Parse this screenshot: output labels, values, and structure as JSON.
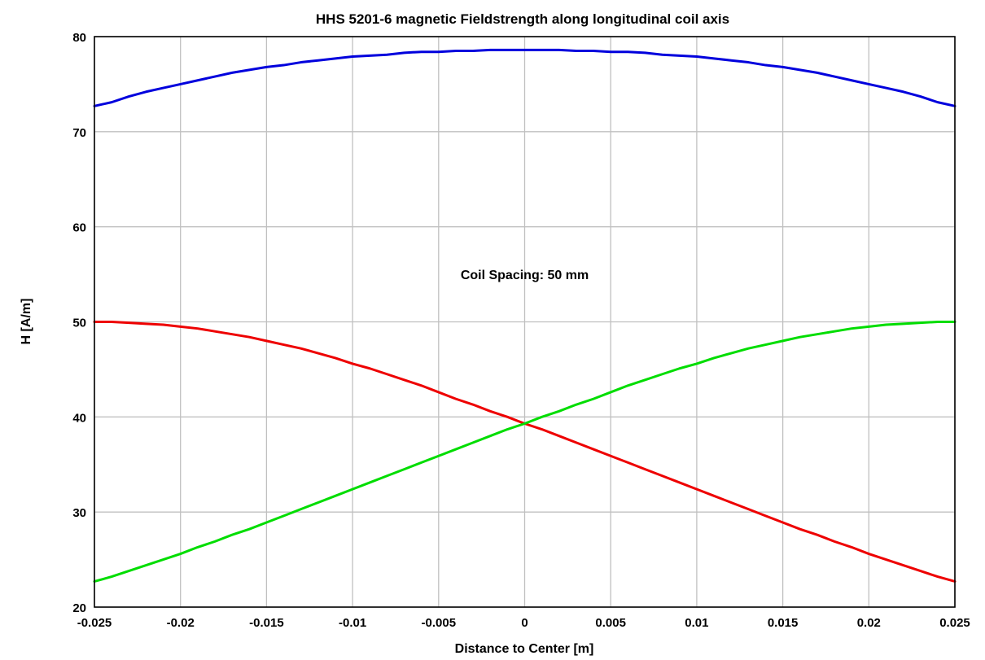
{
  "chart_data": {
    "type": "line",
    "title": "HHS 5201-6 magnetic Fieldstrength along longitudinal coil axis",
    "xlabel": "Distance to Center [m]",
    "ylabel": "H [A/m]",
    "xlim": [
      -0.025,
      0.025
    ],
    "ylim": [
      20,
      80
    ],
    "xticks": [
      -0.025,
      -0.02,
      -0.015,
      -0.01,
      -0.005,
      0,
      0.005,
      0.01,
      0.015,
      0.02,
      0.025
    ],
    "xtick_labels": [
      "-0.025",
      "-0.02",
      "-0.015",
      "-0.01",
      "-0.005",
      "0",
      "0.005",
      "0.01",
      "0.015",
      "0.02",
      "0.025"
    ],
    "yticks": [
      20,
      30,
      40,
      50,
      60,
      70,
      80
    ],
    "ytick_labels": [
      "20",
      "30",
      "40",
      "50",
      "60",
      "70",
      "80"
    ],
    "grid": true,
    "annotation": {
      "text": "Coil Spacing: 50 mm",
      "x": 0,
      "y": 55
    },
    "x": [
      -0.025,
      -0.024,
      -0.023,
      -0.022,
      -0.021,
      -0.02,
      -0.019,
      -0.018,
      -0.017,
      -0.016,
      -0.015,
      -0.014,
      -0.013,
      -0.012,
      -0.011,
      -0.01,
      -0.009,
      -0.008,
      -0.007,
      -0.006,
      -0.005,
      -0.004,
      -0.003,
      -0.002,
      -0.001,
      0,
      0.001,
      0.002,
      0.003,
      0.004,
      0.005,
      0.006,
      0.007,
      0.008,
      0.009,
      0.01,
      0.011,
      0.012,
      0.013,
      0.014,
      0.015,
      0.016,
      0.017,
      0.018,
      0.019,
      0.02,
      0.021,
      0.022,
      0.023,
      0.024,
      0.025
    ],
    "series": [
      {
        "color": "#0000dd",
        "values": [
          72.7,
          73.1,
          73.7,
          74.2,
          74.6,
          75.0,
          75.4,
          75.8,
          76.2,
          76.5,
          76.8,
          77.0,
          77.3,
          77.5,
          77.7,
          77.9,
          78.0,
          78.1,
          78.3,
          78.4,
          78.4,
          78.5,
          78.5,
          78.6,
          78.6,
          78.6,
          78.6,
          78.6,
          78.5,
          78.5,
          78.4,
          78.4,
          78.3,
          78.1,
          78.0,
          77.9,
          77.7,
          77.5,
          77.3,
          77.0,
          76.8,
          76.5,
          76.2,
          75.8,
          75.4,
          75.0,
          74.6,
          74.2,
          73.7,
          73.1,
          72.7
        ]
      },
      {
        "color": "#ee0000",
        "values": [
          50.0,
          50.0,
          49.9,
          49.8,
          49.7,
          49.5,
          49.3,
          49.0,
          48.7,
          48.4,
          48.0,
          47.6,
          47.2,
          46.7,
          46.2,
          45.6,
          45.1,
          44.5,
          43.9,
          43.3,
          42.6,
          41.9,
          41.3,
          40.6,
          40.0,
          39.3,
          38.7,
          38.0,
          37.3,
          36.6,
          35.9,
          35.2,
          34.5,
          33.8,
          33.1,
          32.4,
          31.7,
          31.0,
          30.3,
          29.6,
          28.9,
          28.2,
          27.6,
          26.9,
          26.3,
          25.6,
          25.0,
          24.4,
          23.8,
          23.2,
          22.7
        ]
      },
      {
        "color": "#00dd00",
        "values": [
          22.7,
          23.2,
          23.8,
          24.4,
          25.0,
          25.6,
          26.3,
          26.9,
          27.6,
          28.2,
          28.9,
          29.6,
          30.3,
          31.0,
          31.7,
          32.4,
          33.1,
          33.8,
          34.5,
          35.2,
          35.9,
          36.6,
          37.3,
          38.0,
          38.7,
          39.3,
          40.0,
          40.6,
          41.3,
          41.9,
          42.6,
          43.3,
          43.9,
          44.5,
          45.1,
          45.6,
          46.2,
          46.7,
          47.2,
          47.6,
          48.0,
          48.4,
          48.7,
          49.0,
          49.3,
          49.5,
          49.7,
          49.8,
          49.9,
          50.0,
          50.0
        ]
      }
    ]
  }
}
